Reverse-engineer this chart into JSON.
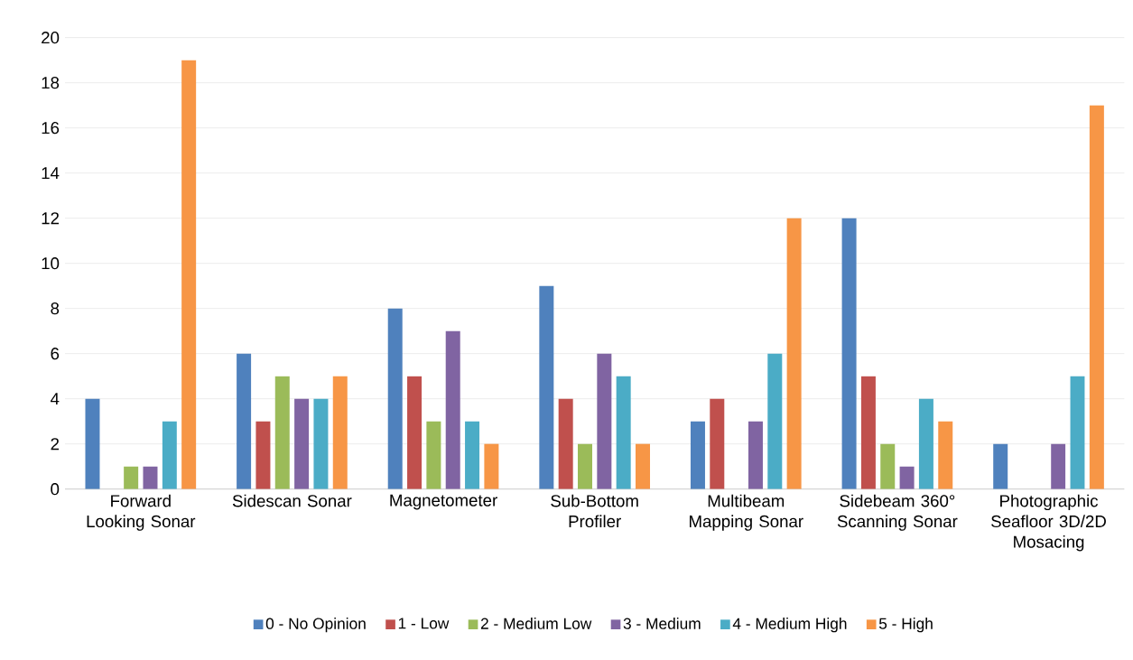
{
  "chart_data": {
    "type": "bar",
    "categories": [
      "Forward Looking Sonar",
      "Sidescan Sonar",
      "Magnetometer",
      "Sub-Bottom Profiler",
      "Multibeam Mapping Sonar",
      "Sidebeam 360° Scanning Sonar",
      "Photographic Seafloor 3D/2D Mosacing"
    ],
    "series": [
      {
        "name": "0 - No Opinion",
        "color": "#4f81bd",
        "values": [
          4,
          6,
          8,
          9,
          3,
          12,
          2
        ]
      },
      {
        "name": "1 - Low",
        "color": "#c0504d",
        "values": [
          0,
          3,
          5,
          4,
          4,
          5,
          0
        ]
      },
      {
        "name": "2 - Medium Low",
        "color": "#9bbb59",
        "values": [
          1,
          5,
          3,
          2,
          0,
          2,
          0
        ]
      },
      {
        "name": "3 - Medium",
        "color": "#8064a2",
        "values": [
          1,
          4,
          7,
          6,
          3,
          1,
          2
        ]
      },
      {
        "name": "4 - Medium High",
        "color": "#4bacc6",
        "values": [
          3,
          4,
          3,
          5,
          6,
          4,
          5
        ]
      },
      {
        "name": "5 - High",
        "color": "#f79646",
        "values": [
          19,
          5,
          2,
          2,
          12,
          3,
          17
        ]
      }
    ],
    "ylim": [
      0,
      20
    ],
    "yticks": [
      0,
      2,
      4,
      6,
      8,
      10,
      12,
      14,
      16,
      18,
      20
    ],
    "grid": "y",
    "legend": "bottom"
  }
}
